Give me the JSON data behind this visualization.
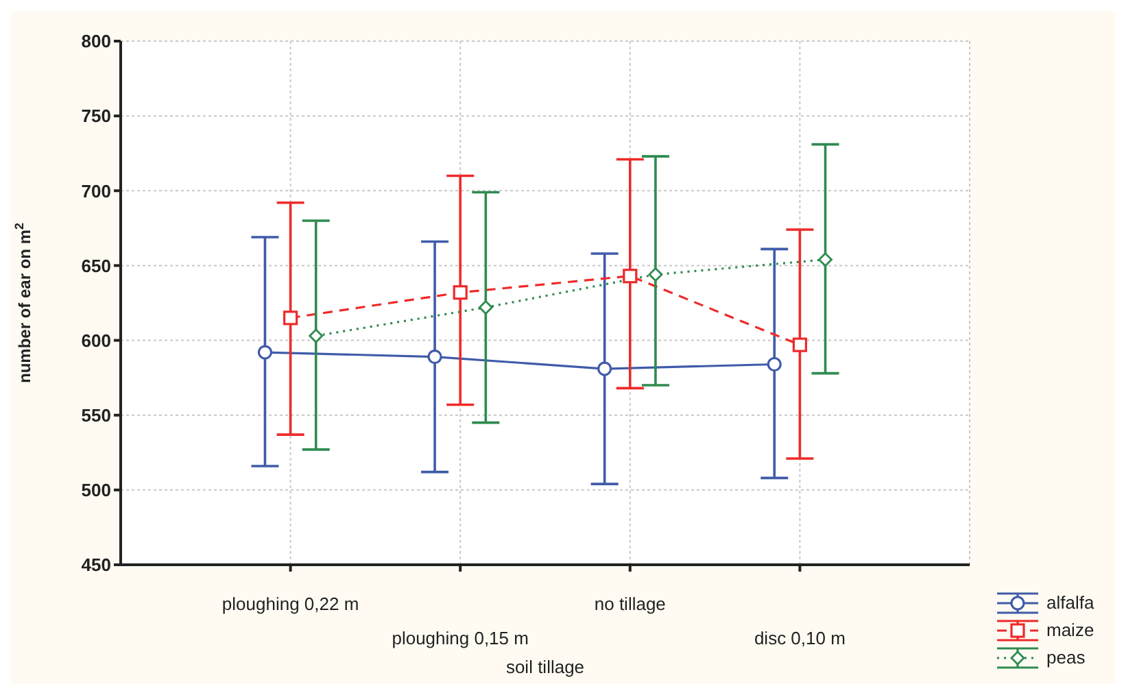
{
  "chart_data": {
    "type": "line",
    "xlabel": "soil tillage",
    "ylabel": "number of ear on m$^{2}$",
    "categories": [
      "ploughing 0,22 m",
      "ploughing 0,15 m",
      "no tillage",
      "disc 0,10 m"
    ],
    "series": [
      {
        "name": "alfalfa",
        "color": "#3f5ba9",
        "marker": "circle",
        "line_style": "solid",
        "values": [
          592,
          589,
          581,
          584
        ],
        "errors": [
          [
            516,
            669
          ],
          [
            512,
            666
          ],
          [
            504,
            658
          ],
          [
            508,
            661
          ]
        ]
      },
      {
        "name": "maize",
        "color": "#ee2a2a",
        "marker": "square",
        "line_style": "dashed",
        "values": [
          615,
          632,
          643,
          597
        ],
        "errors": [
          [
            537,
            692
          ],
          [
            557,
            710
          ],
          [
            568,
            721
          ],
          [
            521,
            674
          ]
        ]
      },
      {
        "name": "peas",
        "color": "#2e8b4f",
        "marker": "diamond",
        "line_style": "dotted",
        "values": [
          603,
          622,
          644,
          654
        ],
        "errors": [
          [
            527,
            680
          ],
          [
            545,
            699
          ],
          [
            570,
            723
          ],
          [
            578,
            731
          ]
        ]
      }
    ],
    "ylim": [
      450,
      800
    ],
    "yticks": [
      450,
      500,
      550,
      600,
      650,
      700,
      750,
      800
    ],
    "grid": true,
    "legend": "bottom right"
  }
}
